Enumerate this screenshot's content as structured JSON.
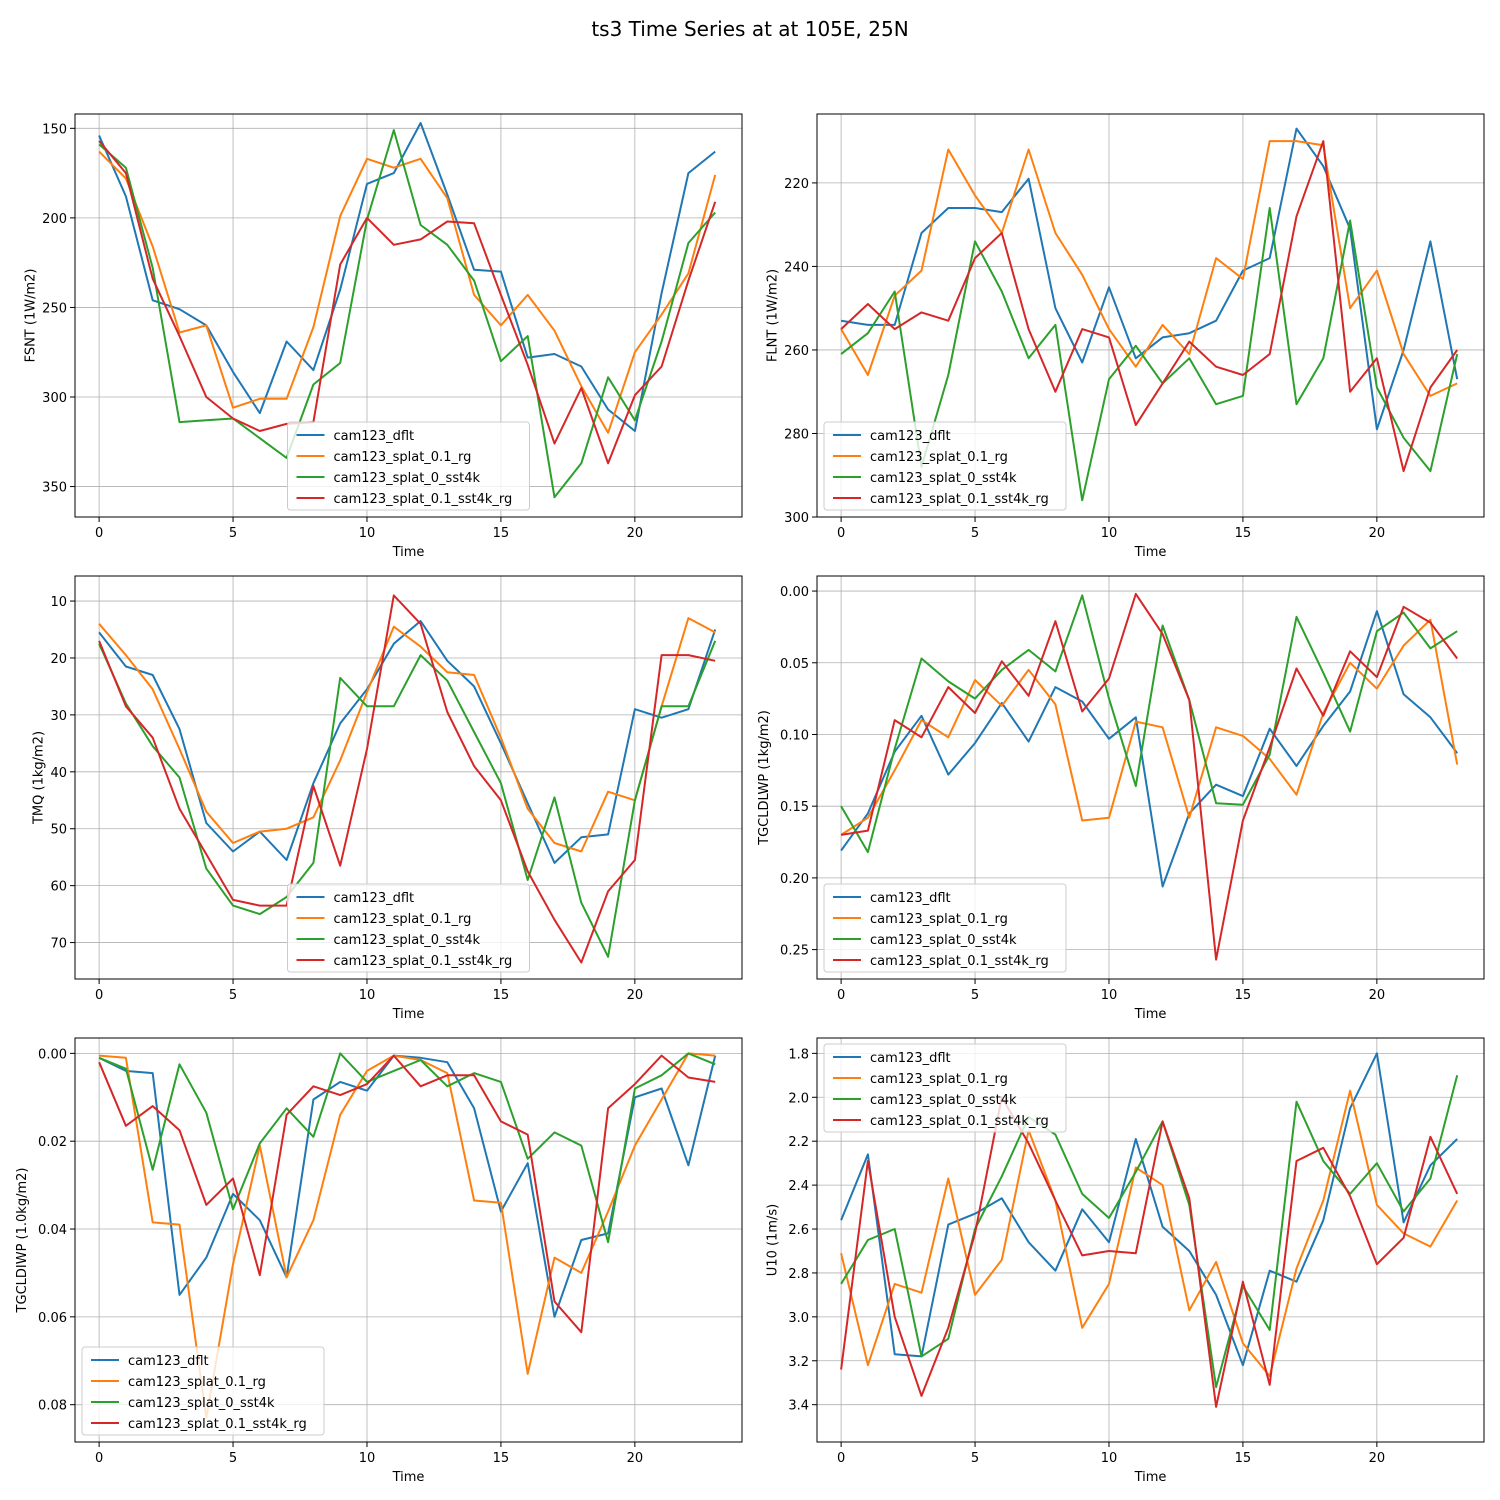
{
  "figure": {
    "title": "ts3 Time Series at at 105E, 25N"
  },
  "colors": {
    "cam123_dflt": "#1f77b4",
    "cam123_splat_0.1_rg": "#ff7f0e",
    "cam123_splat_0_sst4k": "#2ca02c",
    "cam123_splat_0.1_sst4k_rg": "#d62728"
  },
  "chart_data": [
    {
      "type": "line",
      "xlabel": "Time",
      "ylabel": "FSNT (1W/m2)",
      "y_inverted": true,
      "grid": true,
      "xlim": [
        -0.9,
        24.0
      ],
      "ylim": [
        367,
        142
      ],
      "xticks": [
        0,
        5,
        10,
        15,
        20
      ],
      "yticks": [
        150,
        200,
        250,
        300,
        350
      ],
      "legend_position": "lower center",
      "x": [
        0,
        1,
        2,
        3,
        4,
        5,
        6,
        7,
        8,
        9,
        10,
        11,
        12,
        13,
        14,
        15,
        16,
        17,
        18,
        19,
        20,
        21,
        22,
        23
      ],
      "series": [
        {
          "name": "cam123_dflt",
          "values": [
            154,
            188,
            246,
            251,
            260,
            286,
            309,
            269,
            285,
            240,
            181,
            175,
            147,
            187,
            229,
            230,
            278,
            276,
            283,
            307,
            319,
            242,
            175,
            163
          ]
        },
        {
          "name": "cam123_splat_0.1_rg",
          "values": [
            163,
            178,
            216,
            264,
            260,
            306,
            301,
            301,
            261,
            199,
            167,
            172,
            167,
            189,
            243,
            260,
            243,
            263,
            294,
            320,
            275,
            254,
            231,
            176
          ]
        },
        {
          "name": "cam123_splat_0_sst4k",
          "values": [
            159,
            172,
            228,
            314,
            313,
            312,
            323,
            334,
            293,
            281,
            201,
            151,
            204,
            215,
            235,
            280,
            266,
            356,
            337,
            289,
            313,
            269,
            214,
            197
          ]
        },
        {
          "name": "cam123_splat_0.1_sst4k_rg",
          "values": [
            157,
            175,
            234,
            266,
            300,
            312,
            319,
            315,
            314,
            226,
            200,
            215,
            212,
            202,
            203,
            243,
            282,
            326,
            295,
            337,
            299,
            283,
            235,
            191
          ]
        }
      ]
    },
    {
      "type": "line",
      "xlabel": "Time",
      "ylabel": "FLNT (1W/m2)",
      "y_inverted": true,
      "grid": true,
      "xlim": [
        -0.9,
        24.0
      ],
      "ylim": [
        300,
        203.5
      ],
      "xticks": [
        0,
        5,
        10,
        15,
        20
      ],
      "yticks": [
        220,
        240,
        260,
        280,
        300
      ],
      "legend_position": "lower left",
      "x": [
        0,
        1,
        2,
        3,
        4,
        5,
        6,
        7,
        8,
        9,
        10,
        11,
        12,
        13,
        14,
        15,
        16,
        17,
        18,
        19,
        20,
        21,
        22,
        23
      ],
      "series": [
        {
          "name": "cam123_dflt",
          "values": [
            253,
            254,
            254,
            232,
            226,
            226,
            227,
            219,
            250,
            263,
            245,
            262,
            257,
            256,
            253,
            241,
            238,
            207,
            216,
            231,
            279,
            260,
            234,
            267
          ]
        },
        {
          "name": "cam123_splat_0.1_rg",
          "values": [
            255,
            266,
            247,
            241,
            212,
            223,
            232,
            212,
            232,
            242,
            255,
            264,
            254,
            261,
            238,
            243,
            210,
            210,
            211,
            250,
            241,
            261,
            271,
            268
          ]
        },
        {
          "name": "cam123_splat_0_sst4k",
          "values": [
            261,
            256,
            246,
            288,
            266,
            234,
            246,
            262,
            254,
            296,
            267,
            259,
            268,
            262,
            273,
            271,
            226,
            273,
            262,
            229,
            269,
            281,
            289,
            261
          ]
        },
        {
          "name": "cam123_splat_0.1_sst4k_rg",
          "values": [
            255,
            249,
            255,
            251,
            253,
            238,
            232,
            255,
            270,
            255,
            257,
            278,
            268,
            258,
            264,
            266,
            261,
            228,
            210,
            270,
            262,
            289,
            269,
            260
          ]
        }
      ]
    },
    {
      "type": "line",
      "xlabel": "Time",
      "ylabel": "TMQ (1kg/m2)",
      "y_inverted": true,
      "grid": true,
      "xlim": [
        -0.9,
        24.0
      ],
      "ylim": [
        76.4,
        5.6
      ],
      "xticks": [
        0,
        5,
        10,
        15,
        20
      ],
      "yticks": [
        10,
        20,
        30,
        40,
        50,
        60,
        70
      ],
      "legend_position": "lower center",
      "x": [
        0,
        1,
        2,
        3,
        4,
        5,
        6,
        7,
        8,
        9,
        10,
        11,
        12,
        13,
        14,
        15,
        16,
        17,
        18,
        19,
        20,
        21,
        22,
        23
      ],
      "series": [
        {
          "name": "cam123_dflt",
          "values": [
            15.5,
            21.5,
            23,
            32.5,
            49,
            54,
            50.5,
            55.5,
            42,
            31.5,
            25.5,
            17.5,
            13.5,
            20.5,
            25,
            35,
            45.5,
            56,
            51.5,
            51,
            29,
            30.5,
            29,
            15
          ]
        },
        {
          "name": "cam123_splat_0.1_rg",
          "values": [
            14,
            19.5,
            25.5,
            36,
            47,
            52.5,
            50.5,
            50,
            48,
            38,
            26,
            14.5,
            18,
            22.5,
            23,
            34,
            46.5,
            52.5,
            54,
            43.5,
            45,
            28.5,
            13,
            15.5
          ]
        },
        {
          "name": "cam123_splat_0_sst4k",
          "values": [
            17.5,
            28,
            35.5,
            41,
            57,
            63.5,
            65,
            62,
            56,
            23.5,
            28.5,
            28.5,
            19.5,
            24,
            33,
            42,
            59,
            44.5,
            63,
            72.5,
            45,
            28.5,
            28.5,
            17
          ]
        },
        {
          "name": "cam123_splat_0.1_sst4k_rg",
          "values": [
            17,
            28.5,
            34,
            46.5,
            54.5,
            62.5,
            63.5,
            63.5,
            42.5,
            56.5,
            36,
            9,
            14,
            29.5,
            39,
            45,
            57.5,
            66,
            73.5,
            61,
            55.5,
            19.5,
            19.5,
            20.5
          ]
        }
      ]
    },
    {
      "type": "line",
      "xlabel": "Time",
      "ylabel": "TGCLDLWP (1kg/m2)",
      "y_inverted": true,
      "grid": true,
      "xlim": [
        -0.9,
        24.0
      ],
      "ylim": [
        0.2705,
        -0.0105
      ],
      "xticks": [
        0,
        5,
        10,
        15,
        20
      ],
      "yticks": [
        0.0,
        0.05,
        0.1,
        0.15,
        0.2,
        0.25
      ],
      "ytick_labels": [
        "0.00",
        "0.05",
        "0.10",
        "0.15",
        "0.20",
        "0.25"
      ],
      "legend_position": "lower left",
      "x": [
        0,
        1,
        2,
        3,
        4,
        5,
        6,
        7,
        8,
        9,
        10,
        11,
        12,
        13,
        14,
        15,
        16,
        17,
        18,
        19,
        20,
        21,
        22,
        23
      ],
      "series": [
        {
          "name": "cam123_dflt",
          "values": [
            0.181,
            0.155,
            0.112,
            0.087,
            0.128,
            0.106,
            0.078,
            0.105,
            0.067,
            0.077,
            0.103,
            0.088,
            0.206,
            0.155,
            0.135,
            0.143,
            0.096,
            0.122,
            0.094,
            0.07,
            0.014,
            0.072,
            0.088,
            0.113
          ]
        },
        {
          "name": "cam123_splat_0.1_rg",
          "values": [
            0.17,
            0.158,
            0.125,
            0.09,
            0.102,
            0.062,
            0.08,
            0.055,
            0.079,
            0.16,
            0.158,
            0.091,
            0.095,
            0.158,
            0.095,
            0.101,
            0.117,
            0.142,
            0.085,
            0.05,
            0.068,
            0.038,
            0.02,
            0.121
          ]
        },
        {
          "name": "cam123_splat_0_sst4k",
          "values": [
            0.15,
            0.182,
            0.11,
            0.047,
            0.063,
            0.075,
            0.055,
            0.041,
            0.056,
            0.003,
            0.075,
            0.136,
            0.024,
            0.076,
            0.148,
            0.149,
            0.114,
            0.018,
            0.057,
            0.098,
            0.028,
            0.015,
            0.04,
            0.028
          ]
        },
        {
          "name": "cam123_splat_0.1_sst4k_rg",
          "values": [
            0.17,
            0.167,
            0.09,
            0.102,
            0.067,
            0.085,
            0.049,
            0.073,
            0.021,
            0.084,
            0.061,
            0.002,
            0.03,
            0.076,
            0.257,
            0.16,
            0.109,
            0.054,
            0.087,
            0.042,
            0.06,
            0.011,
            0.022,
            0.047
          ]
        }
      ]
    },
    {
      "type": "line",
      "xlabel": "Time",
      "ylabel": "TGCLDIWP (1.0kg/m2)",
      "y_inverted": true,
      "grid": true,
      "xlim": [
        -0.9,
        24.0
      ],
      "ylim": [
        0.0885,
        -0.0035
      ],
      "xticks": [
        0,
        5,
        10,
        15,
        20
      ],
      "yticks": [
        0.0,
        0.02,
        0.04,
        0.06,
        0.08
      ],
      "ytick_labels": [
        "0.00",
        "0.02",
        "0.04",
        "0.06",
        "0.08"
      ],
      "legend_position": "lower left",
      "x": [
        0,
        1,
        2,
        3,
        4,
        5,
        6,
        7,
        8,
        9,
        10,
        11,
        12,
        13,
        14,
        15,
        16,
        17,
        18,
        19,
        20,
        21,
        22,
        23
      ],
      "series": [
        {
          "name": "cam123_dflt",
          "values": [
            0.001,
            0.004,
            0.0045,
            0.055,
            0.0465,
            0.032,
            0.038,
            0.051,
            0.0105,
            0.0065,
            0.0085,
            0.0005,
            0.001,
            0.002,
            0.0125,
            0.036,
            0.025,
            0.06,
            0.0425,
            0.041,
            0.01,
            0.008,
            0.0255,
            0.0005
          ]
        },
        {
          "name": "cam123_splat_0.1_rg",
          "values": [
            0.0005,
            0.001,
            0.0385,
            0.039,
            0.083,
            0.048,
            0.021,
            0.051,
            0.038,
            0.014,
            0.004,
            0.0005,
            0.0015,
            0.0045,
            0.0335,
            0.034,
            0.073,
            0.0465,
            0.05,
            0.036,
            0.021,
            0.0105,
            0.0,
            0.0005
          ]
        },
        {
          "name": "cam123_splat_0_sst4k",
          "values": [
            0.001,
            0.0035,
            0.0265,
            0.0025,
            0.0135,
            0.0355,
            0.0205,
            0.0125,
            0.019,
            0.0,
            0.0065,
            0.004,
            0.0015,
            0.0075,
            0.0045,
            0.0065,
            0.024,
            0.018,
            0.021,
            0.043,
            0.008,
            0.005,
            0.0,
            0.0025
          ]
        },
        {
          "name": "cam123_splat_0.1_sst4k_rg",
          "values": [
            0.002,
            0.0165,
            0.012,
            0.0175,
            0.0345,
            0.0285,
            0.0505,
            0.014,
            0.0075,
            0.0095,
            0.007,
            0.0005,
            0.0075,
            0.005,
            0.005,
            0.0155,
            0.0185,
            0.0565,
            0.0635,
            0.0125,
            0.007,
            0.0005,
            0.0055,
            0.0065
          ]
        }
      ]
    },
    {
      "type": "line",
      "xlabel": "Time",
      "ylabel": "U10 (1m/s)",
      "y_inverted": true,
      "grid": true,
      "xlim": [
        -0.9,
        24.0
      ],
      "ylim": [
        3.57,
        1.73
      ],
      "xticks": [
        0,
        5,
        10,
        15,
        20
      ],
      "yticks": [
        1.8,
        2.0,
        2.2,
        2.4,
        2.6,
        2.8,
        3.0,
        3.2,
        3.4
      ],
      "ytick_labels": [
        "1.8",
        "2.0",
        "2.2",
        "2.4",
        "2.6",
        "2.8",
        "3.0",
        "3.2",
        "3.4"
      ],
      "legend_position": "upper left",
      "x": [
        0,
        1,
        2,
        3,
        4,
        5,
        6,
        7,
        8,
        9,
        10,
        11,
        12,
        13,
        14,
        15,
        16,
        17,
        18,
        19,
        20,
        21,
        22,
        23
      ],
      "series": [
        {
          "name": "cam123_dflt",
          "values": [
            2.56,
            2.26,
            3.17,
            3.18,
            2.58,
            2.53,
            2.46,
            2.66,
            2.79,
            2.51,
            2.66,
            2.19,
            2.59,
            2.7,
            2.9,
            3.22,
            2.79,
            2.84,
            2.56,
            2.05,
            1.8,
            2.57,
            2.31,
            2.19
          ]
        },
        {
          "name": "cam123_splat_0.1_rg",
          "values": [
            2.71,
            3.22,
            2.85,
            2.89,
            2.37,
            2.9,
            2.74,
            2.15,
            2.47,
            3.05,
            2.85,
            2.32,
            2.4,
            2.97,
            2.75,
            3.12,
            3.27,
            2.78,
            2.47,
            1.97,
            2.49,
            2.62,
            2.68,
            2.47
          ]
        },
        {
          "name": "cam123_splat_0_sst4k",
          "values": [
            2.85,
            2.65,
            2.6,
            3.18,
            3.1,
            2.6,
            2.36,
            2.09,
            2.17,
            2.44,
            2.55,
            2.34,
            2.11,
            2.49,
            3.32,
            2.86,
            3.06,
            2.02,
            2.29,
            2.44,
            2.3,
            2.52,
            2.37,
            1.9
          ]
        },
        {
          "name": "cam123_splat_0.1_sst4k_rg",
          "values": [
            3.24,
            2.29,
            3.0,
            3.36,
            3.05,
            2.62,
            2.0,
            2.21,
            2.47,
            2.72,
            2.7,
            2.71,
            2.11,
            2.46,
            3.41,
            2.84,
            3.31,
            2.29,
            2.23,
            2.45,
            2.76,
            2.64,
            2.18,
            2.44
          ]
        }
      ]
    }
  ]
}
